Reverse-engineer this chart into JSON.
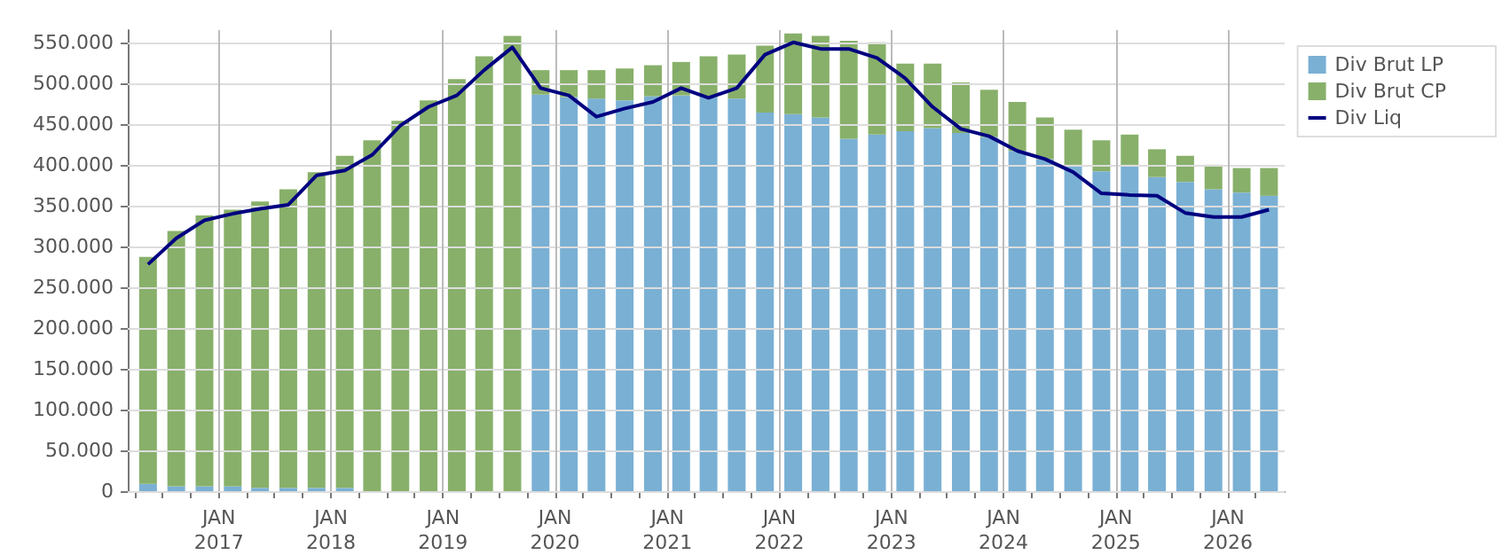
{
  "chart_data": {
    "type": "bar",
    "stacked": true,
    "legend": "top right",
    "grid": true,
    "x": [
      "2016-05-15",
      "2016-08-15",
      "2016-11-15",
      "2017-02-15",
      "2017-05-15",
      "2017-08-15",
      "2017-11-15",
      "2018-02-15",
      "2018-05-15",
      "2018-08-15",
      "2018-11-15",
      "2019-02-15",
      "2019-05-15",
      "2019-08-15",
      "2019-11-15",
      "2020-02-15",
      "2020-05-15",
      "2020-08-15",
      "2020-11-15",
      "2021-02-15",
      "2021-05-15",
      "2021-08-15",
      "2021-11-15",
      "2022-02-15",
      "2022-05-15",
      "2022-08-15",
      "2022-11-15",
      "2023-02-15",
      "2023-05-15",
      "2023-08-15",
      "2023-11-15",
      "2024-02-15",
      "2024-05-15",
      "2024-08-15",
      "2024-11-15",
      "2025-02-15",
      "2025-05-15",
      "2025-08-15",
      "2025-11-15",
      "2026-02-15",
      "2026-05-15"
    ],
    "series": [
      {
        "name": "Div Brut LP",
        "color": "#7ab0d4",
        "values": [
          9000,
          6000,
          6000,
          6000,
          4000,
          4000,
          4000,
          4000,
          0,
          0,
          0,
          0,
          0,
          0,
          486000,
          483000,
          481000,
          479000,
          484000,
          485000,
          483000,
          481000,
          464000,
          462000,
          458000,
          432000,
          437000,
          441000,
          445000,
          439000,
          434000,
          417000,
          407000,
          400000,
          392000,
          400000,
          385000,
          379000,
          370000,
          366000,
          362000
        ]
      },
      {
        "name": "Div Brut CP",
        "color": "#88b06a",
        "values": [
          278000,
          313000,
          332000,
          339000,
          351000,
          366000,
          387000,
          407000,
          430000,
          454000,
          479000,
          505000,
          533000,
          558000,
          30000,
          33000,
          35000,
          39000,
          38000,
          41000,
          50000,
          54000,
          82000,
          99000,
          100000,
          120000,
          113000,
          83000,
          79000,
          62000,
          58000,
          60000,
          51000,
          43000,
          38000,
          37000,
          34000,
          32000,
          30000,
          30000,
          34000
        ]
      },
      {
        "name": "Div Liq",
        "type": "line",
        "color": "#000080",
        "marker": "none",
        "values": [
          278000,
          310000,
          332000,
          340000,
          346000,
          351000,
          387000,
          393000,
          412000,
          448000,
          471000,
          485000,
          516000,
          544000,
          494000,
          485000,
          459000,
          469000,
          477000,
          494000,
          482000,
          494000,
          535000,
          550000,
          542000,
          542000,
          531000,
          506000,
          471000,
          444000,
          435000,
          417000,
          407000,
          391000,
          365000,
          363000,
          362000,
          341000,
          336000,
          336000,
          345000
        ]
      }
    ],
    "xlim": [
      "2016-03-10",
      "2026-07-05"
    ],
    "xticks": [
      {
        "value": "2016-04-01",
        "label": null
      },
      {
        "value": "2016-07-01",
        "label": null
      },
      {
        "value": "2016-10-01",
        "label": null
      },
      {
        "value": "2017-01-01",
        "label": "JAN\n2017"
      },
      {
        "value": "2017-04-01",
        "label": null
      },
      {
        "value": "2017-07-01",
        "label": null
      },
      {
        "value": "2017-10-01",
        "label": null
      },
      {
        "value": "2018-01-01",
        "label": "JAN\n2018"
      },
      {
        "value": "2018-04-01",
        "label": null
      },
      {
        "value": "2018-07-01",
        "label": null
      },
      {
        "value": "2018-10-01",
        "label": null
      },
      {
        "value": "2019-01-01",
        "label": "JAN\n2019"
      },
      {
        "value": "2019-04-01",
        "label": null
      },
      {
        "value": "2019-07-01",
        "label": null
      },
      {
        "value": "2019-10-01",
        "label": null
      },
      {
        "value": "2020-01-01",
        "label": "JAN\n2020"
      },
      {
        "value": "2020-04-01",
        "label": null
      },
      {
        "value": "2020-07-01",
        "label": null
      },
      {
        "value": "2020-10-01",
        "label": null
      },
      {
        "value": "2021-01-01",
        "label": "JAN\n2021"
      },
      {
        "value": "2021-04-01",
        "label": null
      },
      {
        "value": "2021-07-01",
        "label": null
      },
      {
        "value": "2021-10-01",
        "label": null
      },
      {
        "value": "2022-01-01",
        "label": "JAN\n2022"
      },
      {
        "value": "2022-04-01",
        "label": null
      },
      {
        "value": "2022-07-01",
        "label": null
      },
      {
        "value": "2022-10-01",
        "label": null
      },
      {
        "value": "2023-01-01",
        "label": "JAN\n2023"
      },
      {
        "value": "2023-04-01",
        "label": null
      },
      {
        "value": "2023-07-01",
        "label": null
      },
      {
        "value": "2023-10-01",
        "label": null
      },
      {
        "value": "2024-01-01",
        "label": "JAN\n2024"
      },
      {
        "value": "2024-04-01",
        "label": null
      },
      {
        "value": "2024-07-01",
        "label": null
      },
      {
        "value": "2024-10-01",
        "label": null
      },
      {
        "value": "2025-01-01",
        "label": "JAN\n2025"
      },
      {
        "value": "2025-04-01",
        "label": null
      },
      {
        "value": "2025-07-01",
        "label": null
      },
      {
        "value": "2025-10-01",
        "label": null
      },
      {
        "value": "2026-01-01",
        "label": "JAN\n2026"
      },
      {
        "value": "2026-04-01",
        "label": null
      }
    ],
    "ylim": [
      0,
      565000
    ],
    "yticks": [
      0,
      {
        "value": 50000,
        "label": "50.000"
      },
      {
        "value": 100000,
        "label": "100.000"
      },
      {
        "value": 150000,
        "label": "150.000"
      },
      {
        "value": 200000,
        "label": "200.000"
      },
      {
        "value": 250000,
        "label": "250.000"
      },
      {
        "value": 300000,
        "label": "300.000"
      },
      {
        "value": 350000,
        "label": "350.000"
      },
      {
        "value": 400000,
        "label": "400.000"
      },
      {
        "value": 450000,
        "label": "450.000"
      },
      {
        "value": 500000,
        "label": "500.000"
      },
      {
        "value": 550000,
        "label": "550.000"
      }
    ]
  }
}
